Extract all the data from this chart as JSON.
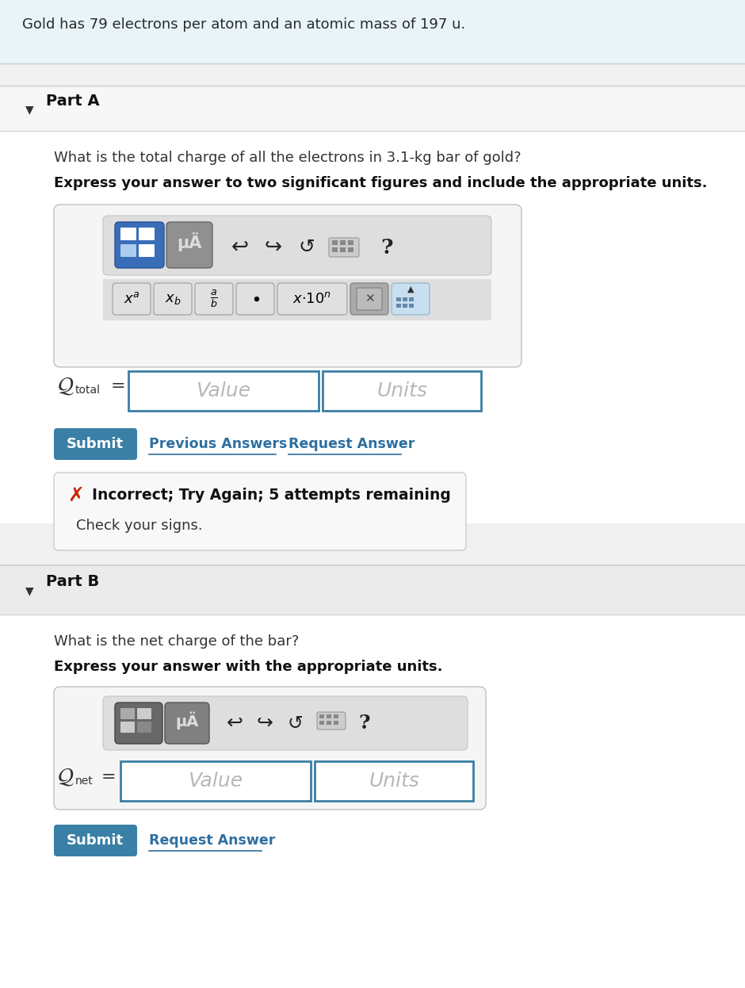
{
  "bg_color": "#f0f0f0",
  "header_bg": "#e8f4f8",
  "header_text": "Gold has 79 electrons per atom and an atomic mass of 197 u.",
  "header_text_color": "#333333",
  "part_a_label": "Part A",
  "part_a_q1": "What is the total charge of all the electrons in 3.1-kg bar of gold?",
  "part_a_q2": "Express your answer to two significant figures and include the appropriate units.",
  "part_b_label": "Part B",
  "part_b_q1": "What is the net charge of the bar?",
  "part_b_q2": "Express your answer with the appropriate units.",
  "submit_color": "#3a7fa5",
  "link_color": "#2e6fa0",
  "error_text": "Incorrect; Try Again; 5 attempts remaining",
  "error_subtext": "Check your signs.",
  "input_border": "#3a7fa5",
  "toolbar_bg": "#e2e2e2",
  "toolbar_border": "#c0c0c0",
  "part_header_bg": "#ebebeb",
  "separator_color": "#cccccc",
  "error_border": "#cccccc",
  "error_bg": "#f8f8f8",
  "content_bg": "#ffffff",
  "blue_btn": "#3a6db8",
  "gray_btn": "#888888"
}
